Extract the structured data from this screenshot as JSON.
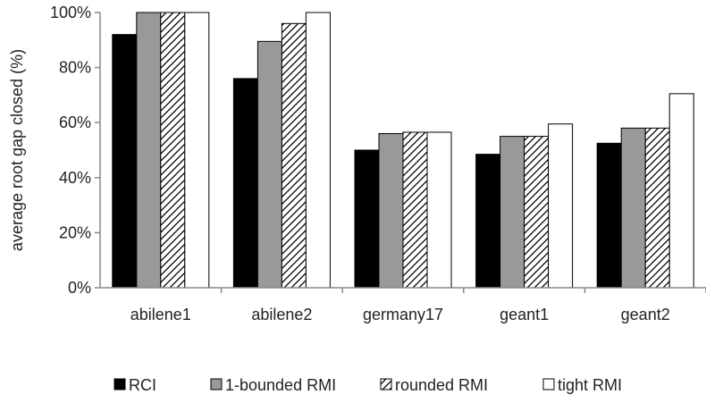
{
  "chart_data": {
    "type": "bar",
    "title": "",
    "xlabel": "",
    "ylabel": "average root gap closed (%)",
    "ylim": [
      0,
      100
    ],
    "yticks": [
      0,
      20,
      40,
      60,
      80,
      100
    ],
    "ytick_labels": [
      "0%",
      "20%",
      "40%",
      "60%",
      "80%",
      "100%"
    ],
    "categories": [
      "abilene1",
      "abilene2",
      "germany17",
      "geant1",
      "geant2"
    ],
    "legend_position": "bottom",
    "grid": false,
    "series": [
      {
        "name": "RCI",
        "fill": "solid-black",
        "color": "#000000",
        "values": [
          92,
          76,
          50,
          48.5,
          52.5
        ]
      },
      {
        "name": "1-bounded RMI",
        "fill": "solid-gray",
        "color": "#999999",
        "values": [
          100,
          89.5,
          56,
          55,
          58
        ]
      },
      {
        "name": "rounded RMI",
        "fill": "diagonal-hatch",
        "color": "#000000",
        "values": [
          100,
          96,
          56.5,
          55,
          58
        ]
      },
      {
        "name": "tight RMI",
        "fill": "solid-white",
        "color": "#ffffff",
        "values": [
          100,
          100,
          56.5,
          59.5,
          70.5
        ]
      }
    ]
  }
}
